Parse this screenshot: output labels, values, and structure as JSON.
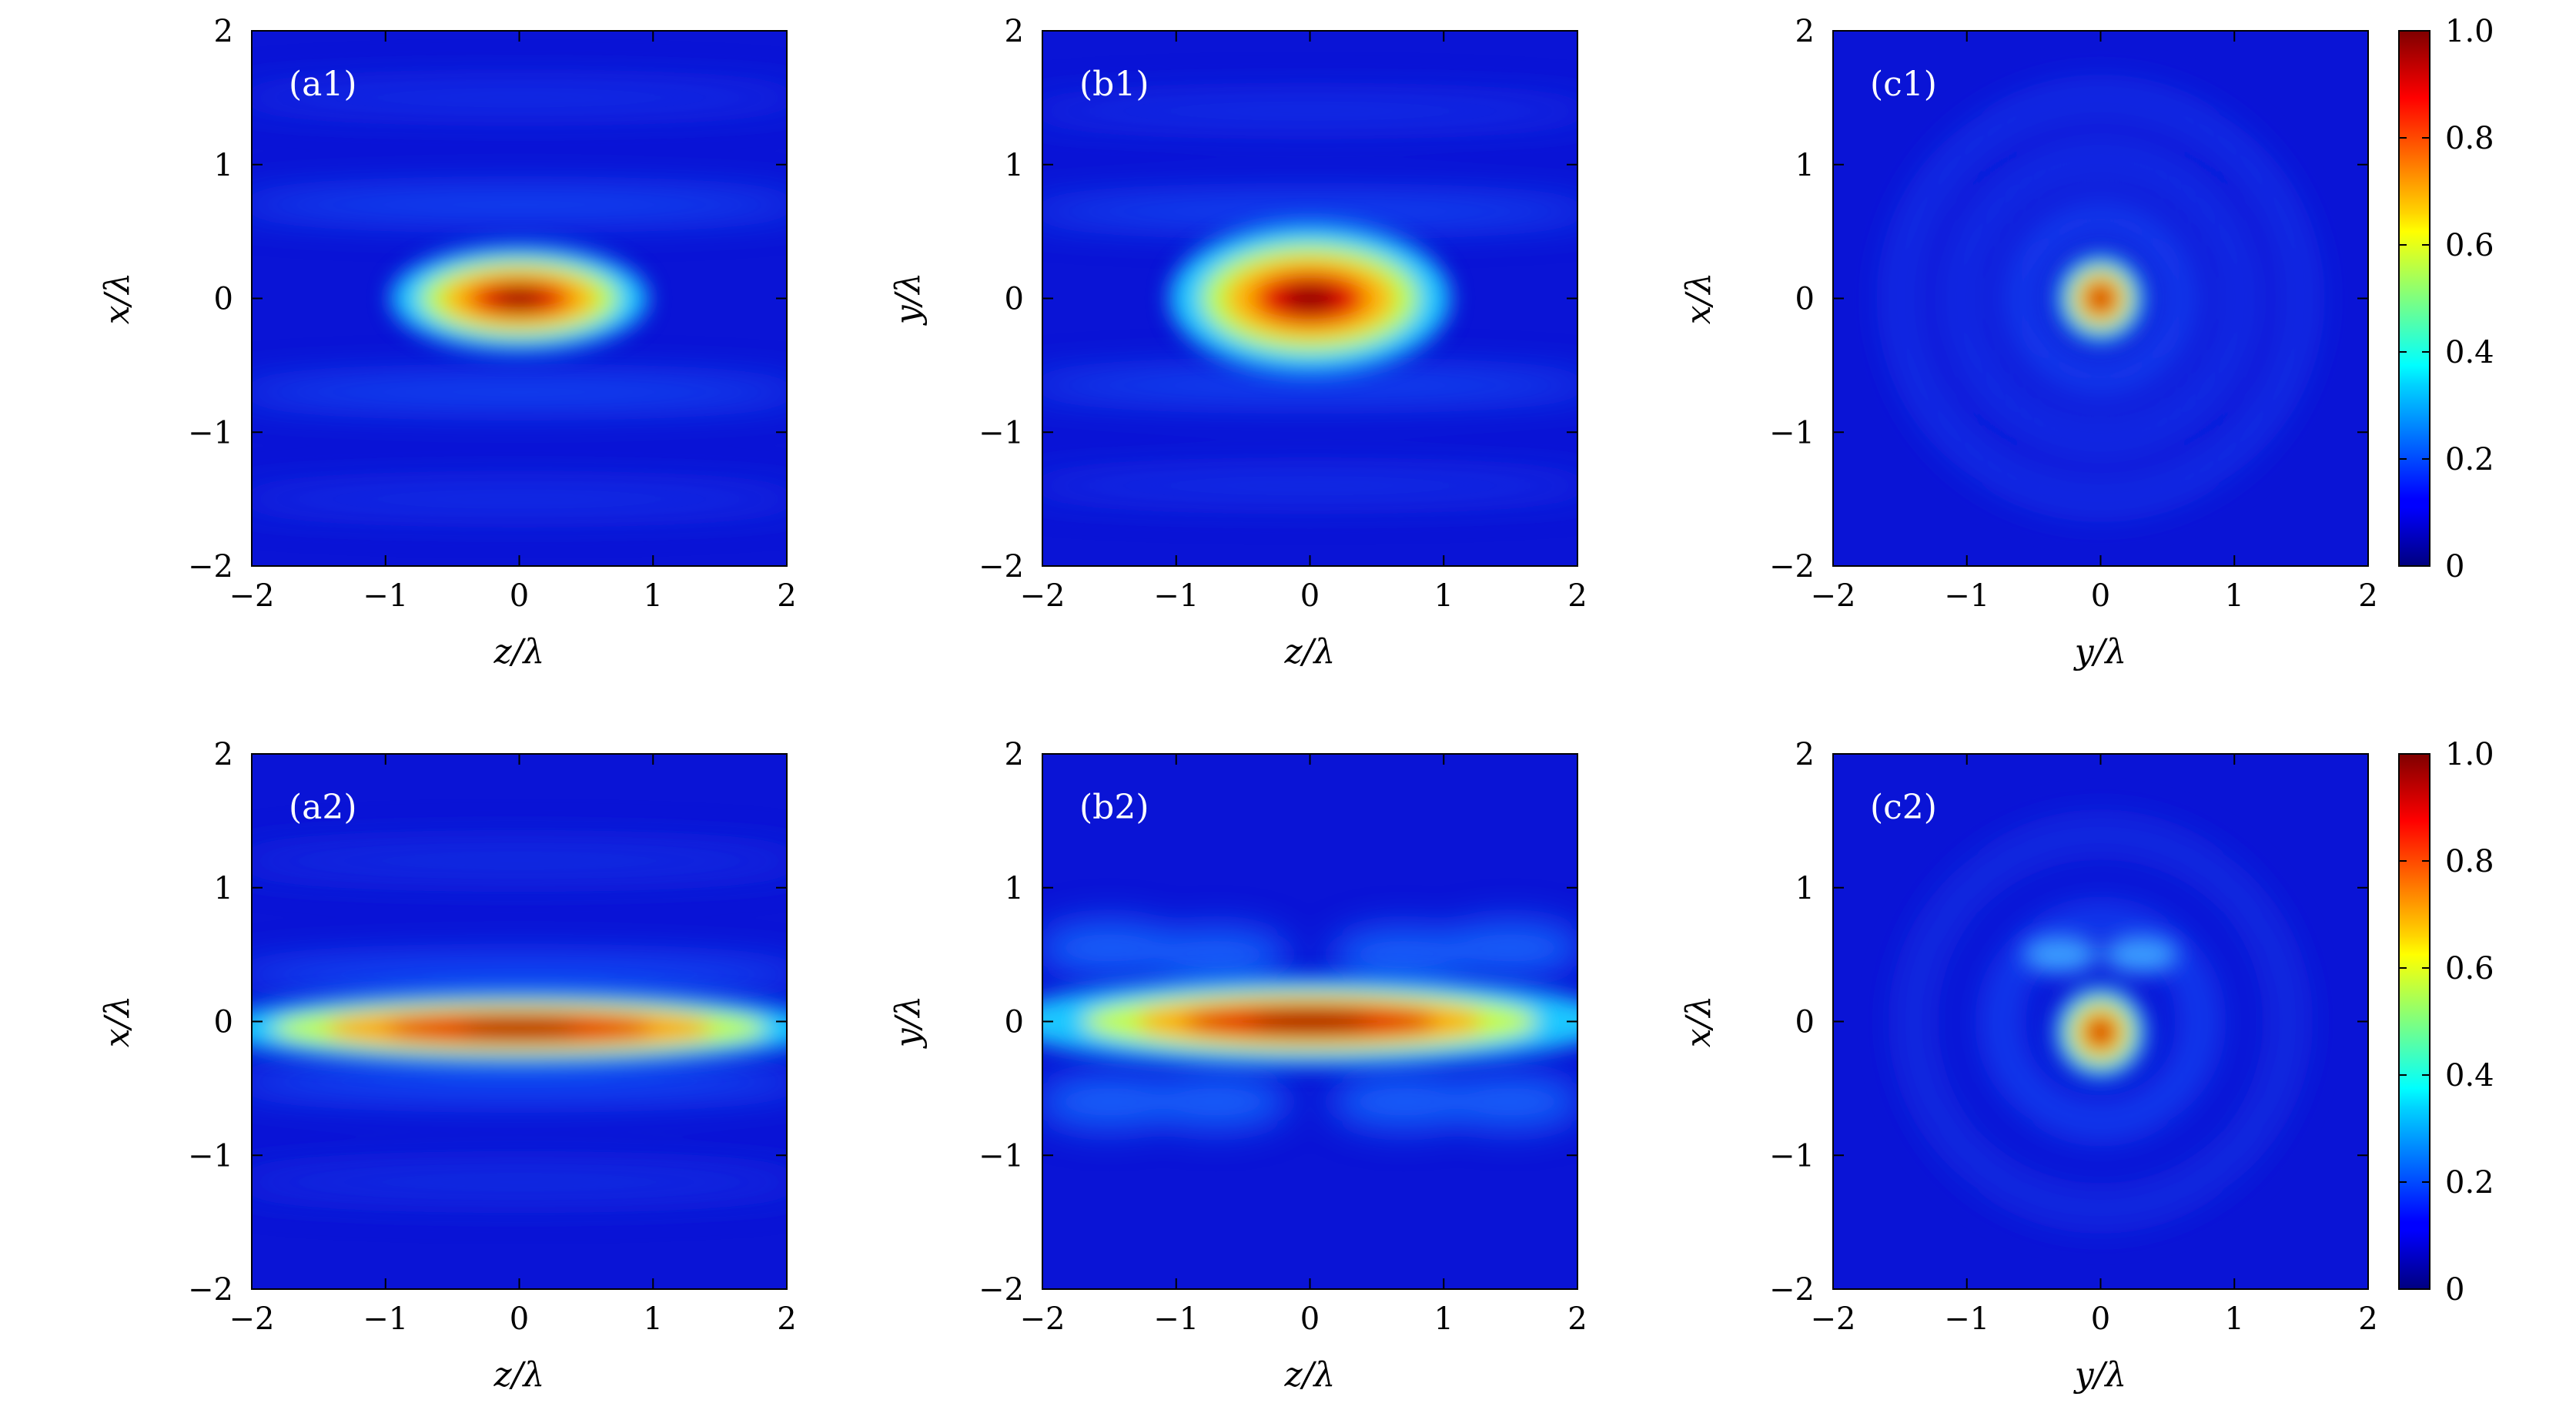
{
  "figure": {
    "panels": [
      {
        "label": "(a1)",
        "xlabel": "z/λ",
        "ylabel": "x/λ"
      },
      {
        "label": "(b1)",
        "xlabel": "z/λ",
        "ylabel": "y/λ"
      },
      {
        "label": "(c1)",
        "xlabel": "y/λ",
        "ylabel": "x/λ"
      },
      {
        "label": "(a2)",
        "xlabel": "z/λ",
        "ylabel": "x/λ"
      },
      {
        "label": "(b2)",
        "xlabel": "z/λ",
        "ylabel": "y/λ"
      },
      {
        "label": "(c2)",
        "xlabel": "y/λ",
        "ylabel": "x/λ"
      }
    ],
    "colorbars": [
      {
        "ticks": [
          "0",
          "0.2",
          "0.4",
          "0.6",
          "0.8",
          "1.0"
        ]
      },
      {
        "ticks": [
          "0",
          "0.2",
          "0.4",
          "0.6",
          "0.8",
          "1.0"
        ]
      }
    ],
    "colors": {
      "colormap": "jet"
    }
  },
  "chart_data": [
    {
      "type": "heatmap",
      "panel": "(a1)",
      "xlabel": "z/λ",
      "ylabel": "x/λ",
      "xlim": [
        -2,
        2
      ],
      "ylim": [
        -2,
        2
      ],
      "xticks": [
        "−2",
        "−1",
        "0",
        "1",
        "2"
      ],
      "yticks": [
        "−2",
        "−1",
        "0",
        "1",
        "2"
      ],
      "colorscale": {
        "min": 0,
        "max": 1.0,
        "colormap": "jet"
      },
      "peak": {
        "x": 0,
        "y": 0,
        "value": 1.0
      },
      "description_values": {
        "half_width_x": 0.55,
        "half_width_y": 0.12,
        "side_fringes_y": [
          0.7,
          -0.7,
          1.5,
          -1.5
        ]
      }
    },
    {
      "type": "heatmap",
      "panel": "(b1)",
      "xlabel": "z/λ",
      "ylabel": "y/λ",
      "xlim": [
        -2,
        2
      ],
      "ylim": [
        -2,
        2
      ],
      "xticks": [
        "−2",
        "−1",
        "0",
        "1",
        "2"
      ],
      "yticks": [
        "−2",
        "−1",
        "0",
        "1",
        "2"
      ],
      "colorscale": {
        "min": 0,
        "max": 1.0,
        "colormap": "jet"
      },
      "peak": {
        "x": 0,
        "y": 0,
        "value": 1.0
      },
      "description_values": {
        "half_width_x": 0.6,
        "half_width_y": 0.17,
        "side_fringes_y": [
          0.65,
          -0.65,
          1.4,
          -1.4
        ]
      }
    },
    {
      "type": "heatmap",
      "panel": "(c1)",
      "xlabel": "y/λ",
      "ylabel": "x/λ",
      "xlim": [
        -2,
        2
      ],
      "ylim": [
        -2,
        2
      ],
      "xticks": [
        "−2",
        "−1",
        "0",
        "1",
        "2"
      ],
      "yticks": [
        "−2",
        "−1",
        "0",
        "1",
        "2"
      ],
      "colorscale": {
        "min": 0,
        "max": 1.0,
        "colormap": "jet"
      },
      "peak": {
        "x": 0,
        "y": 0,
        "value": 1.0
      },
      "description_values": {
        "spot_radius": 0.16,
        "ring_radii": [
          0.6,
          1.05,
          1.5
        ]
      }
    },
    {
      "type": "heatmap",
      "panel": "(a2)",
      "xlabel": "z/λ",
      "ylabel": "x/λ",
      "xlim": [
        -2,
        2
      ],
      "ylim": [
        -2,
        2
      ],
      "xticks": [
        "−2",
        "−1",
        "0",
        "1",
        "2"
      ],
      "yticks": [
        "−2",
        "−1",
        "0",
        "1",
        "2"
      ],
      "colorscale": {
        "min": 0,
        "max": 1.0,
        "colormap": "jet"
      },
      "peak": {
        "x": 0,
        "y": -0.05,
        "value": 1.0
      },
      "description_values": {
        "half_width_x": 1.2,
        "half_width_y": 0.14,
        "side_fringes_y": [
          0.35,
          -0.45,
          1.2,
          -1.2
        ]
      }
    },
    {
      "type": "heatmap",
      "panel": "(b2)",
      "xlabel": "z/λ",
      "ylabel": "y/λ",
      "xlim": [
        -2,
        2
      ],
      "ylim": [
        -2,
        2
      ],
      "xticks": [
        "−2",
        "−1",
        "0",
        "1",
        "2"
      ],
      "yticks": [
        "−2",
        "−1",
        "0",
        "1",
        "2"
      ],
      "colorscale": {
        "min": 0,
        "max": 1.0,
        "colormap": "jet"
      },
      "peak": {
        "x": 0,
        "y": 0,
        "value": 1.0
      },
      "description_values": {
        "half_width_x": 1.1,
        "half_width_y": 0.17,
        "side_lobes_y": [
          0.45,
          -0.7
        ]
      }
    },
    {
      "type": "heatmap",
      "panel": "(c2)",
      "xlabel": "y/λ",
      "ylabel": "x/λ",
      "xlim": [
        -2,
        2
      ],
      "ylim": [
        -2,
        2
      ],
      "xticks": [
        "−2",
        "−1",
        "0",
        "1",
        "2"
      ],
      "yticks": [
        "−2",
        "−1",
        "0",
        "1",
        "2"
      ],
      "colorscale": {
        "min": 0,
        "max": 1.0,
        "colormap": "jet"
      },
      "peak": {
        "x": 0,
        "y": -0.08,
        "value": 1.0
      },
      "description_values": {
        "spot_radius": 0.16,
        "upper_lobes": [
          {
            "x": -0.3,
            "y": 0.5
          },
          {
            "x": 0.3,
            "y": 0.5
          }
        ],
        "ring_radii": [
          0.75,
          1.4
        ]
      }
    }
  ]
}
